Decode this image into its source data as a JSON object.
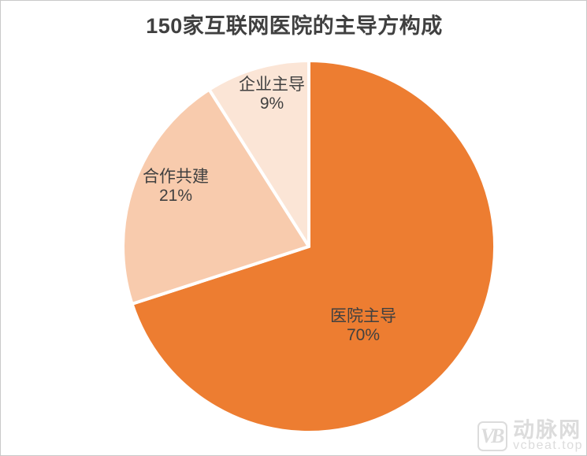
{
  "page": {
    "background": "#ffffff",
    "frame_border_color": "#c9c9c9"
  },
  "chart_data": {
    "type": "pie",
    "title": "150家互联网医院的主导方构成",
    "categories": [
      "医院主导",
      "合作共建",
      "企业主导"
    ],
    "values": [
      70,
      21,
      9
    ],
    "unit": "%",
    "slices": [
      {
        "label": "医院主导",
        "value": 70,
        "percent_label": "70%",
        "color": "#ED7D31"
      },
      {
        "label": "合作共建",
        "value": 21,
        "percent_label": "21%",
        "color": "#F8CBAD"
      },
      {
        "label": "企业主导",
        "value": 9,
        "percent_label": "9%",
        "color": "#FBE5D6"
      }
    ],
    "start_angle_deg": 0,
    "direction": "clockwise",
    "slice_border_color": "#ffffff",
    "title_color": "#404040",
    "label_color": "#404040",
    "legend": "none",
    "labels_on_slices": true
  },
  "watermark": {
    "logo_text": "VB",
    "brand": "动脉网",
    "site": "vcbeat.top",
    "color": "#dcdcdc"
  }
}
